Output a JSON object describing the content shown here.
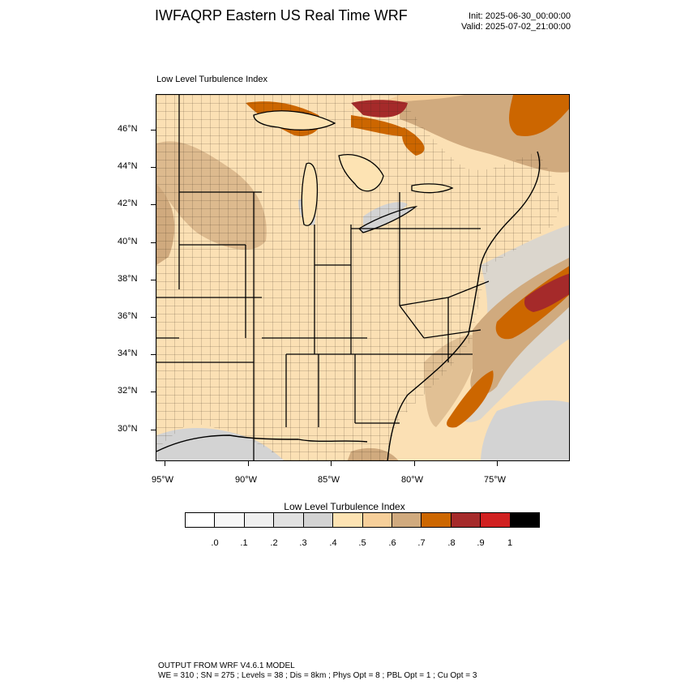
{
  "header": {
    "title": "IWFAQRP Eastern US Real Time WRF",
    "init": "Init: 2025-06-30_00:00:00",
    "valid": "Valid: 2025-07-02_21:00:00"
  },
  "map": {
    "subtitle": "Low Level Turbulence Index",
    "lat_labels": [
      "46°N",
      "44°N",
      "42°N",
      "40°N",
      "38°N",
      "36°N",
      "34°N",
      "32°N",
      "30°N"
    ],
    "lon_labels": [
      "95°W",
      "90°W",
      "85°W",
      "80°W",
      "75°W"
    ]
  },
  "colorbar": {
    "title": "Low Level Turbulence Index",
    "colors": [
      "#ffffff",
      "#f7f7f7",
      "#efefef",
      "#e1e1e1",
      "#d3d3d3",
      "#fde3b3",
      "#f6cf9a",
      "#d0aa7e",
      "#cc6600",
      "#a52a2a",
      "#d02020",
      "#000000"
    ],
    "labels": [
      ".0",
      ".1",
      ".2",
      ".3",
      ".4",
      ".5",
      ".6",
      ".7",
      ".8",
      ".9",
      "1"
    ]
  },
  "footer": {
    "line1": "OUTPUT FROM WRF V4.6.1 MODEL",
    "line2": "WE = 310 ; SN = 275 ; Levels = 38 ; Dis = 8km ; Phys Opt = 8 ; PBL Opt = 1 ; Cu Opt = 3"
  }
}
